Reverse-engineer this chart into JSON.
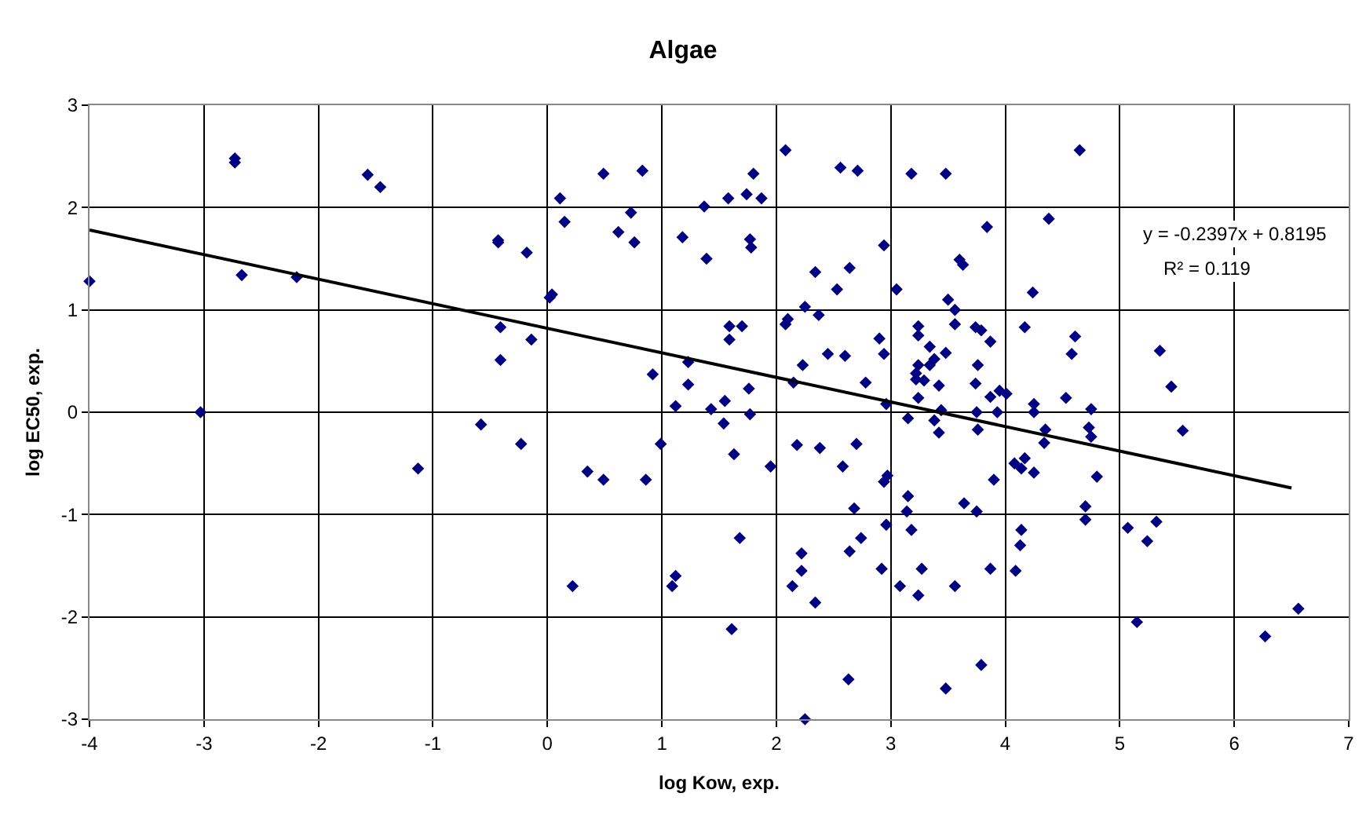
{
  "chart_data": {
    "type": "scatter",
    "title": "Algae",
    "xlabel": "log Kow, exp.",
    "ylabel": "log EC50, exp.",
    "xlim": [
      -4,
      7
    ],
    "xticks": [
      -4,
      -3,
      -2,
      -1,
      0,
      1,
      2,
      3,
      4,
      5,
      6,
      7
    ],
    "ylim": [
      -3,
      3
    ],
    "yticks": [
      -3,
      -2,
      -1,
      0,
      1,
      2,
      3
    ],
    "grid": true,
    "annotations": [
      "y = -0.2397x + 0.8195",
      "R² = 0.119"
    ],
    "series": [
      {
        "type": "scatter",
        "marker": "diamond",
        "color": "#000080",
        "x": [
          -4,
          -3.03,
          -2.73,
          -2.73,
          -2.67,
          -2.19,
          -1.57,
          -1.46,
          -1.13,
          -0.58,
          -0.23,
          -0.43,
          -0.43,
          -0.18,
          -0.41,
          -0.14,
          -0.41,
          0.04,
          0.02,
          0.11,
          0.15,
          0.49,
          0.83,
          0.73,
          0.62,
          0.76,
          1.18,
          1.37,
          1.58,
          1.74,
          1.8,
          1.87,
          1.77,
          1.78,
          1.39,
          2.08,
          2.56,
          2.71,
          2.34,
          2.64,
          2.53,
          2.25,
          2.37,
          2.1,
          2.08,
          1.59,
          1.7,
          1.59,
          2.45,
          2.6,
          2.23,
          2.15,
          1.23,
          1.23,
          0.92,
          1.12,
          1.43,
          1.55,
          1.76,
          1.77,
          1.54,
          0.99,
          1.63,
          1.95,
          2.18,
          2.38,
          2.58,
          2.7,
          0.35,
          0.49,
          0.86,
          2.68,
          1.68,
          2.22,
          2.22,
          2.64,
          0.22,
          1.12,
          1.09,
          2.14,
          2.34,
          1.61,
          2.63,
          2.25,
          3.18,
          3.48,
          3.84,
          4.38,
          2.94,
          3.05,
          3.6,
          3.63,
          4.24,
          3.5,
          3.56,
          3.56,
          3.24,
          3.24,
          3.74,
          3.79,
          3.87,
          4.17,
          2.9,
          2.94,
          3.34,
          3.48,
          3.38,
          3.34,
          3.24,
          3.22,
          3.22,
          3.29,
          3.42,
          3.76,
          3.74,
          2.78,
          3.95,
          4.01,
          3.87,
          4.25,
          2.96,
          3.24,
          3.93,
          3.75,
          4.25,
          3.44,
          3.15,
          3.38,
          3.42,
          3.76,
          4.35,
          4.34,
          4.17,
          4.08,
          4.14,
          4.25,
          3.9,
          2.94,
          2.97,
          3.15,
          3.14,
          3.64,
          3.75,
          2.96,
          3.18,
          2.74,
          2.92,
          3.27,
          3.87,
          4.09,
          4.14,
          4.13,
          3.08,
          3.56,
          3.24,
          3.79,
          3.48,
          4.65,
          4.61,
          4.58,
          4.53,
          4.75,
          4.73,
          4.75,
          4.8,
          5.35,
          5.45,
          5.55,
          4.7,
          4.7,
          5.07,
          5.24,
          5.32,
          5.15,
          6.27,
          6.56
        ],
        "values": [
          1.28,
          0,
          2.48,
          2.44,
          1.34,
          1.32,
          2.32,
          2.2,
          -0.55,
          -0.12,
          -0.31,
          1.66,
          1.68,
          1.56,
          0.83,
          0.71,
          0.51,
          1.15,
          1.12,
          2.09,
          1.86,
          2.33,
          2.36,
          1.95,
          1.76,
          1.66,
          1.71,
          2.01,
          2.09,
          2.13,
          2.33,
          2.09,
          1.69,
          1.61,
          1.5,
          2.56,
          2.39,
          2.36,
          1.37,
          1.41,
          1.2,
          1.03,
          0.95,
          0.91,
          0.86,
          0.84,
          0.84,
          0.71,
          0.57,
          0.55,
          0.46,
          0.29,
          0.49,
          0.27,
          0.37,
          0.06,
          0.03,
          0.11,
          0.23,
          -0.02,
          -0.11,
          -0.31,
          -0.41,
          -0.53,
          -0.32,
          -0.35,
          -0.53,
          -0.31,
          -0.58,
          -0.66,
          -0.66,
          -0.94,
          -1.23,
          -1.38,
          -1.55,
          -1.36,
          -1.7,
          -1.6,
          -1.7,
          -1.7,
          -1.86,
          -2.12,
          -2.61,
          -3,
          2.33,
          2.33,
          1.81,
          1.89,
          1.63,
          1.2,
          1.49,
          1.44,
          1.17,
          1.1,
          1,
          0.86,
          0.84,
          0.75,
          0.83,
          0.8,
          0.69,
          0.83,
          0.72,
          0.57,
          0.64,
          0.58,
          0.52,
          0.46,
          0.46,
          0.38,
          0.32,
          0.31,
          0.26,
          0.46,
          0.28,
          0.29,
          0.21,
          0.18,
          0.15,
          0.08,
          0.08,
          0.14,
          0,
          0,
          0,
          0.02,
          -0.06,
          -0.08,
          -0.2,
          -0.17,
          -0.17,
          -0.3,
          -0.45,
          -0.5,
          -0.55,
          -0.59,
          -0.66,
          -0.68,
          -0.62,
          -0.82,
          -0.97,
          -0.89,
          -0.97,
          -1.1,
          -1.15,
          -1.23,
          -1.53,
          -1.53,
          -1.53,
          -1.55,
          -1.15,
          -1.3,
          -1.7,
          -1.7,
          -1.79,
          -2.47,
          -2.7,
          2.56,
          0.74,
          0.57,
          0.14,
          0.03,
          -0.15,
          -0.24,
          -0.63,
          0.6,
          0.25,
          -0.18,
          -0.92,
          -1.05,
          -1.13,
          -1.26,
          -1.07,
          -2.05,
          -2.19,
          -1.92
        ]
      },
      {
        "type": "line",
        "marker": "none",
        "line_style": "solid",
        "color": "#000000",
        "x": [
          -4,
          6.5
        ],
        "values": [
          1.78,
          -0.74
        ]
      }
    ]
  }
}
